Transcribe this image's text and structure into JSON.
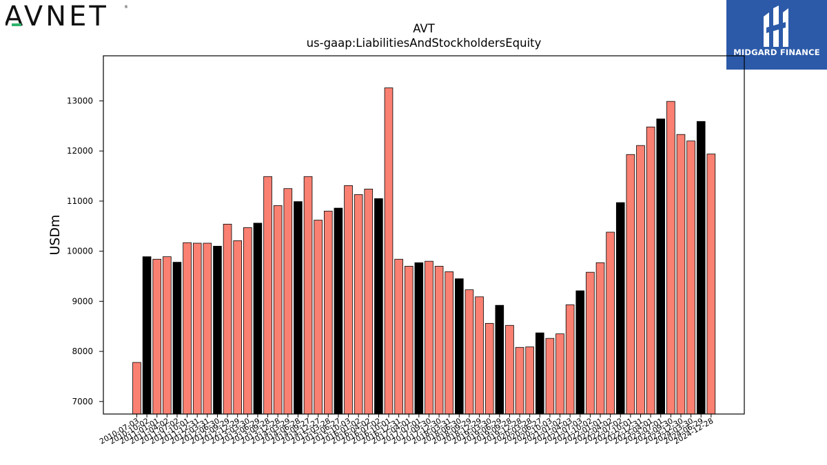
{
  "brand": {
    "company_logo_text": "AVNET",
    "publisher_name": "MIDGARD FINANCE"
  },
  "colors": {
    "bar_default": "#fa8072",
    "bar_highlight": "#000000",
    "logo_accent": "#2fb36b",
    "publisher_bg": "#2c5aa8"
  },
  "chart_data": {
    "type": "bar",
    "title": "AVT",
    "subtitle": "us-gaap:LiabilitiesAndStockholdersEquity",
    "xlabel": "",
    "ylabel": "USDm",
    "ylim": [
      6750,
      13900
    ],
    "yticks": [
      7000,
      8000,
      9000,
      10000,
      11000,
      12000,
      13000
    ],
    "grid": false,
    "categories": [
      "2010-07-03",
      "2010-10-02",
      "2011-01-01",
      "2011-04-02",
      "2011-07-02",
      "2011-10-01",
      "2011-12-31",
      "2012-03-31",
      "2012-06-30",
      "2012-09-29",
      "2012-12-29",
      "2013-03-30",
      "2013-06-29",
      "2013-09-28",
      "2013-12-28",
      "2014-03-29",
      "2014-06-28",
      "2014-09-27",
      "2014-12-27",
      "2015-03-28",
      "2015-06-27",
      "2015-10-03",
      "2016-01-02",
      "2016-04-02",
      "2016-07-02",
      "2016-10-01",
      "2016-12-31",
      "2017-04-01",
      "2017-07-01",
      "2017-09-30",
      "2017-12-30",
      "2018-03-31",
      "2018-06-30",
      "2018-09-29",
      "2018-12-29",
      "2019-03-30",
      "2019-06-29",
      "2019-09-28",
      "2019-12-28",
      "2020-03-28",
      "2020-06-27",
      "2020-10-03",
      "2021-01-02",
      "2021-04-03",
      "2021-07-03",
      "2021-10-02",
      "2022-01-01",
      "2022-04-02",
      "2022-07-02",
      "2022-10-01",
      "2022-12-31",
      "2023-04-01",
      "2023-07-01",
      "2023-09-30",
      "2023-12-30",
      "2024-03-30",
      "2024-06-29",
      "2024-12-28"
    ],
    "values": [
      7780,
      9890,
      9840,
      9890,
      9780,
      10170,
      10160,
      10160,
      10100,
      10540,
      10210,
      10470,
      10560,
      11490,
      10910,
      11250,
      10990,
      11490,
      10620,
      10800,
      10860,
      11310,
      11130,
      11240,
      11050,
      13260,
      9840,
      9700,
      9770,
      9800,
      9700,
      9590,
      9450,
      9230,
      9090,
      8560,
      8920,
      8520,
      8080,
      8090,
      8370,
      8260,
      8350,
      8930,
      9210,
      9580,
      9770,
      10380,
      10970,
      11930,
      12110,
      12480,
      12640,
      12990,
      12330,
      12200,
      12590,
      11940
    ],
    "highlighted": [
      "2010-10-02",
      "2011-07-02",
      "2012-06-30",
      "2013-06-29",
      "2014-06-28",
      "2015-06-27",
      "2016-07-02",
      "2017-07-01",
      "2018-06-30",
      "2019-06-29",
      "2020-06-27",
      "2021-07-03",
      "2022-07-02",
      "2023-07-01",
      "2024-06-29"
    ]
  }
}
